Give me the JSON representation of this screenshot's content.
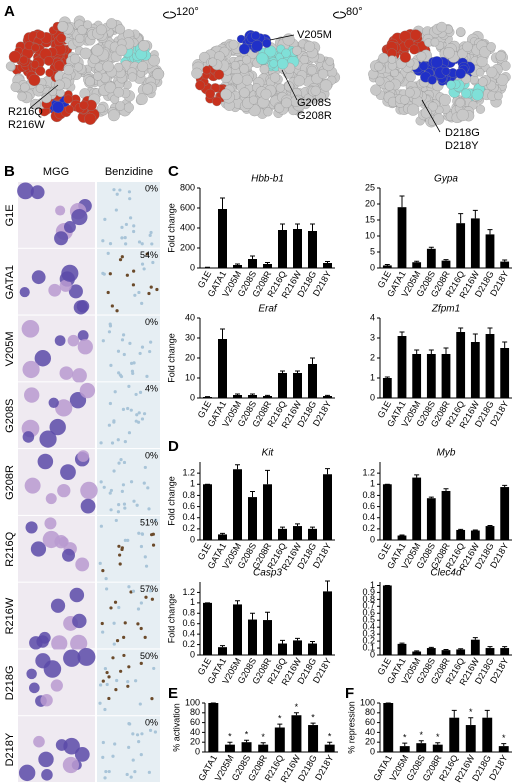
{
  "panels": [
    "A",
    "B",
    "C",
    "D",
    "E",
    "F"
  ],
  "panel_a": {
    "rotations": [
      "120°",
      "80°"
    ],
    "views": [
      {
        "labels": [
          "R216Q",
          "R216W"
        ]
      },
      {
        "labels": [
          "V205M",
          "G208S",
          "G208R"
        ]
      },
      {
        "labels": [
          "D218G",
          "D218Y"
        ]
      }
    ]
  },
  "panel_b": {
    "headers": [
      "MGG",
      "Benzidine"
    ],
    "rows": [
      {
        "label": "G1E",
        "percent": "0%"
      },
      {
        "label": "GATA1",
        "percent": "54%"
      },
      {
        "label": "V205M",
        "percent": "0%"
      },
      {
        "label": "G208S",
        "percent": "4%"
      },
      {
        "label": "G208R",
        "percent": "0%"
      },
      {
        "label": "R216Q",
        "percent": "51%"
      },
      {
        "label": "R216W",
        "percent": "57%"
      },
      {
        "label": "D218G",
        "percent": "50%"
      },
      {
        "label": "D218Y",
        "percent": "0%"
      }
    ]
  },
  "chart_data": [
    {
      "type": "bar",
      "title": "Hbb-b1",
      "ylabel": "Fold change",
      "color": "#000000",
      "categories": [
        "G1E",
        "GATA1",
        "V205M",
        "G208S",
        "G208R",
        "R216Q",
        "R216W",
        "D218G",
        "D218Y"
      ],
      "values": [
        5,
        590,
        30,
        90,
        40,
        380,
        390,
        370,
        50
      ],
      "errors": [
        3,
        110,
        10,
        30,
        15,
        60,
        50,
        70,
        15
      ],
      "ylim": [
        0,
        800
      ],
      "yticks": [
        0,
        200,
        400,
        600,
        800
      ]
    },
    {
      "type": "bar",
      "title": "Gypa",
      "color": "#000000",
      "categories": [
        "G1E",
        "GATA1",
        "V205M",
        "G208S",
        "G208R",
        "R216Q",
        "R216W",
        "D218G",
        "D218Y"
      ],
      "values": [
        0.8,
        19,
        1.8,
        6,
        2.3,
        14,
        15.5,
        10.5,
        2
      ],
      "errors": [
        0.3,
        3.5,
        0.3,
        0.5,
        0.3,
        3,
        2.5,
        1.5,
        0.5
      ],
      "ylim": [
        0,
        25
      ],
      "yticks": [
        0,
        5,
        10,
        15,
        20,
        25
      ]
    },
    {
      "type": "bar",
      "title": "Eraf",
      "ylabel": "Fold change",
      "color": "#000000",
      "categories": [
        "G1E",
        "GATA1",
        "V205M",
        "G208S",
        "G208R",
        "R216Q",
        "R216W",
        "D218G",
        "D218Y"
      ],
      "values": [
        0.5,
        29.5,
        1.5,
        1.5,
        1,
        12.5,
        12.5,
        17,
        1
      ],
      "errors": [
        0.2,
        5,
        0.5,
        0.5,
        0.3,
        1,
        1,
        3,
        0.3
      ],
      "ylim": [
        0,
        40
      ],
      "yticks": [
        0,
        10,
        20,
        30,
        40
      ]
    },
    {
      "type": "bar",
      "title": "Zfpm1",
      "color": "#000000",
      "categories": [
        "G1E",
        "GATA1",
        "V205M",
        "G208S",
        "G208R",
        "R216Q",
        "R216W",
        "D218G",
        "D218Y"
      ],
      "values": [
        1,
        3.1,
        2.2,
        2.2,
        2.2,
        3.3,
        2.8,
        3.2,
        2.5
      ],
      "errors": [
        0.05,
        0.2,
        0.2,
        0.2,
        0.3,
        0.2,
        0.4,
        0.3,
        0.3
      ],
      "ylim": [
        0,
        4
      ],
      "yticks": [
        0,
        1,
        2,
        3,
        4
      ]
    },
    {
      "type": "bar",
      "title": "Kit",
      "ylabel": "Fold change",
      "color": "#000000",
      "categories": [
        "G1E",
        "GATA1",
        "V205M",
        "G208S",
        "G208R",
        "R216Q",
        "R216W",
        "D218G",
        "D218Y"
      ],
      "values": [
        1,
        0.1,
        1.27,
        0.77,
        1.0,
        0.2,
        0.25,
        0.2,
        1.18
      ],
      "errors": [
        0,
        0.02,
        0.08,
        0.1,
        0.25,
        0.03,
        0.04,
        0.03,
        0.1
      ],
      "ylim": [
        0,
        1.4
      ],
      "yticks": [
        0,
        0.2,
        0.4,
        0.6,
        0.8,
        1,
        1.2
      ]
    },
    {
      "type": "bar",
      "title": "Myb",
      "color": "#000000",
      "categories": [
        "G1E",
        "GATA1",
        "V205M",
        "G208S",
        "G208R",
        "R216Q",
        "R216W",
        "D218G",
        "D218Y"
      ],
      "values": [
        1,
        0.08,
        1.12,
        0.75,
        0.88,
        0.18,
        0.17,
        0.25,
        0.95
      ],
      "errors": [
        0,
        0.01,
        0.05,
        0.02,
        0.04,
        0.01,
        0.01,
        0.01,
        0.03
      ],
      "ylim": [
        0,
        1.4
      ],
      "yticks": [
        0,
        0.2,
        0.4,
        0.6,
        0.8,
        1,
        1.2
      ]
    },
    {
      "type": "bar",
      "title": "Casp3",
      "ylabel": "Fold change",
      "color": "#000000",
      "categories": [
        "G1E",
        "GATA1",
        "V205M",
        "G208S",
        "G208R",
        "R216Q",
        "R216W",
        "D218G",
        "D218Y"
      ],
      "values": [
        1,
        0.15,
        0.97,
        0.68,
        0.67,
        0.22,
        0.28,
        0.22,
        1.22
      ],
      "errors": [
        0,
        0.03,
        0.07,
        0.12,
        0.15,
        0.06,
        0.04,
        0.04,
        0.2
      ],
      "ylim": [
        0,
        1.4
      ],
      "yticks": [
        0,
        0.2,
        0.4,
        0.6,
        0.8,
        1,
        1.2
      ]
    },
    {
      "type": "bar",
      "title": "Clec4d",
      "color": "#000000",
      "categories": [
        "G1E",
        "GATA1",
        "V205M",
        "G208S",
        "G208R",
        "R216Q",
        "R216W",
        "D218G",
        "D218Y"
      ],
      "values": [
        1,
        0.16,
        0.05,
        0.1,
        0.07,
        0.08,
        0.22,
        0.1,
        0.1
      ],
      "errors": [
        0,
        0.01,
        0.01,
        0.01,
        0.01,
        0.01,
        0.03,
        0.02,
        0.02
      ],
      "ylim": [
        0,
        1.05
      ],
      "yticks": [
        0,
        0.1,
        0.2,
        0.3,
        0.4,
        0.5,
        0.6,
        0.7,
        0.8,
        0.9,
        1
      ]
    },
    {
      "type": "bar",
      "ylabel": "% activation",
      "color": "#000000",
      "categories": [
        "GATA1",
        "V205M",
        "G208S",
        "G208R",
        "R216Q",
        "R216W",
        "D218G",
        "D218Y"
      ],
      "values": [
        100,
        15,
        20,
        15,
        50,
        75,
        55,
        15
      ],
      "errors": [
        0,
        5,
        4,
        4,
        7,
        5,
        4,
        5
      ],
      "ylim": [
        0,
        100
      ],
      "yticks": [
        0,
        20,
        40,
        60,
        80,
        100
      ],
      "annotations": [
        {
          "category": "V205M",
          "text": "*"
        },
        {
          "category": "G208S",
          "text": "*"
        },
        {
          "category": "G208R",
          "text": "*"
        },
        {
          "category": "R216Q",
          "text": "*"
        },
        {
          "category": "R216W",
          "text": "*"
        },
        {
          "category": "D218G",
          "text": "*"
        },
        {
          "category": "D218Y",
          "text": "*"
        }
      ]
    },
    {
      "type": "bar",
      "ylabel": "% repression",
      "color": "#000000",
      "categories": [
        "GATA1",
        "V205M",
        "G208S",
        "G208R",
        "R216Q",
        "R216W",
        "D218G",
        "D218Y"
      ],
      "values": [
        100,
        12,
        18,
        15,
        70,
        55,
        70,
        12
      ],
      "errors": [
        0,
        6,
        5,
        4,
        15,
        15,
        15,
        5
      ],
      "ylim": [
        0,
        100
      ],
      "yticks": [
        0,
        20,
        40,
        60,
        80,
        100
      ],
      "annotations": [
        {
          "category": "V205M",
          "text": "*"
        },
        {
          "category": "G208S",
          "text": "*"
        },
        {
          "category": "G208R",
          "text": "*"
        },
        {
          "category": "R216W",
          "text": "*"
        },
        {
          "category": "D218Y",
          "text": "*"
        }
      ]
    }
  ]
}
